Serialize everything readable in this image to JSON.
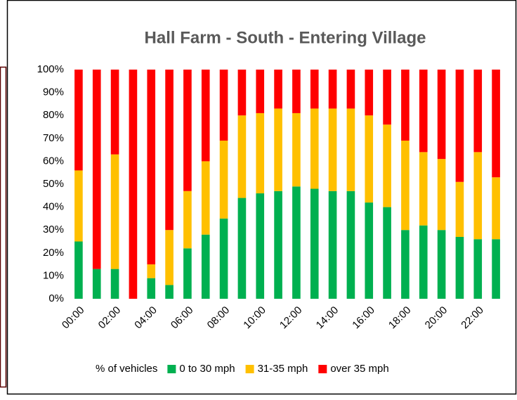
{
  "chart_data": {
    "type": "bar",
    "stacked": true,
    "title": "Hall Farm - South - Entering Village",
    "categories": [
      "00:00",
      null,
      "02:00",
      null,
      "04:00",
      null,
      "06:00",
      null,
      "08:00",
      null,
      "10:00",
      null,
      "12:00",
      null,
      "14:00",
      null,
      "16:00",
      null,
      "18:00",
      null,
      "20:00",
      null,
      "22:00",
      null
    ],
    "legend_title": "% of vehicles",
    "series": [
      {
        "name": "0 to 30 mph",
        "color": "#00b050",
        "values": [
          25,
          13,
          13,
          0,
          9,
          6,
          22,
          28,
          35,
          44,
          46,
          47,
          49,
          48,
          47,
          47,
          42,
          40,
          30,
          32,
          30,
          27,
          26,
          26
        ]
      },
      {
        "name": "31-35 mph",
        "color": "#ffc000",
        "values": [
          31,
          0,
          50,
          0,
          6,
          24,
          25,
          32,
          34,
          36,
          35,
          36,
          32,
          35,
          36,
          36,
          38,
          36,
          39,
          32,
          31,
          24,
          38,
          27
        ]
      },
      {
        "name": "over 35 mph",
        "color": "#ff0000",
        "values": [
          44,
          87,
          37,
          100,
          85,
          70,
          53,
          40,
          31,
          20,
          19,
          17,
          19,
          17,
          17,
          17,
          20,
          24,
          31,
          36,
          39,
          49,
          36,
          47
        ]
      }
    ],
    "ylim": [
      0,
      100
    ],
    "yticks": [
      {
        "value": 0,
        "label": "0%"
      },
      {
        "value": 10,
        "label": "10%"
      },
      {
        "value": 20,
        "label": "20%"
      },
      {
        "value": 30,
        "label": "30%"
      },
      {
        "value": 40,
        "label": "40%"
      },
      {
        "value": 50,
        "label": "50%"
      },
      {
        "value": 60,
        "label": "60%"
      },
      {
        "value": 70,
        "label": "70%"
      },
      {
        "value": 80,
        "label": "80%"
      },
      {
        "value": 90,
        "label": "90%"
      },
      {
        "value": 100,
        "label": "100%"
      }
    ],
    "legend": "bottom",
    "grid": false
  }
}
